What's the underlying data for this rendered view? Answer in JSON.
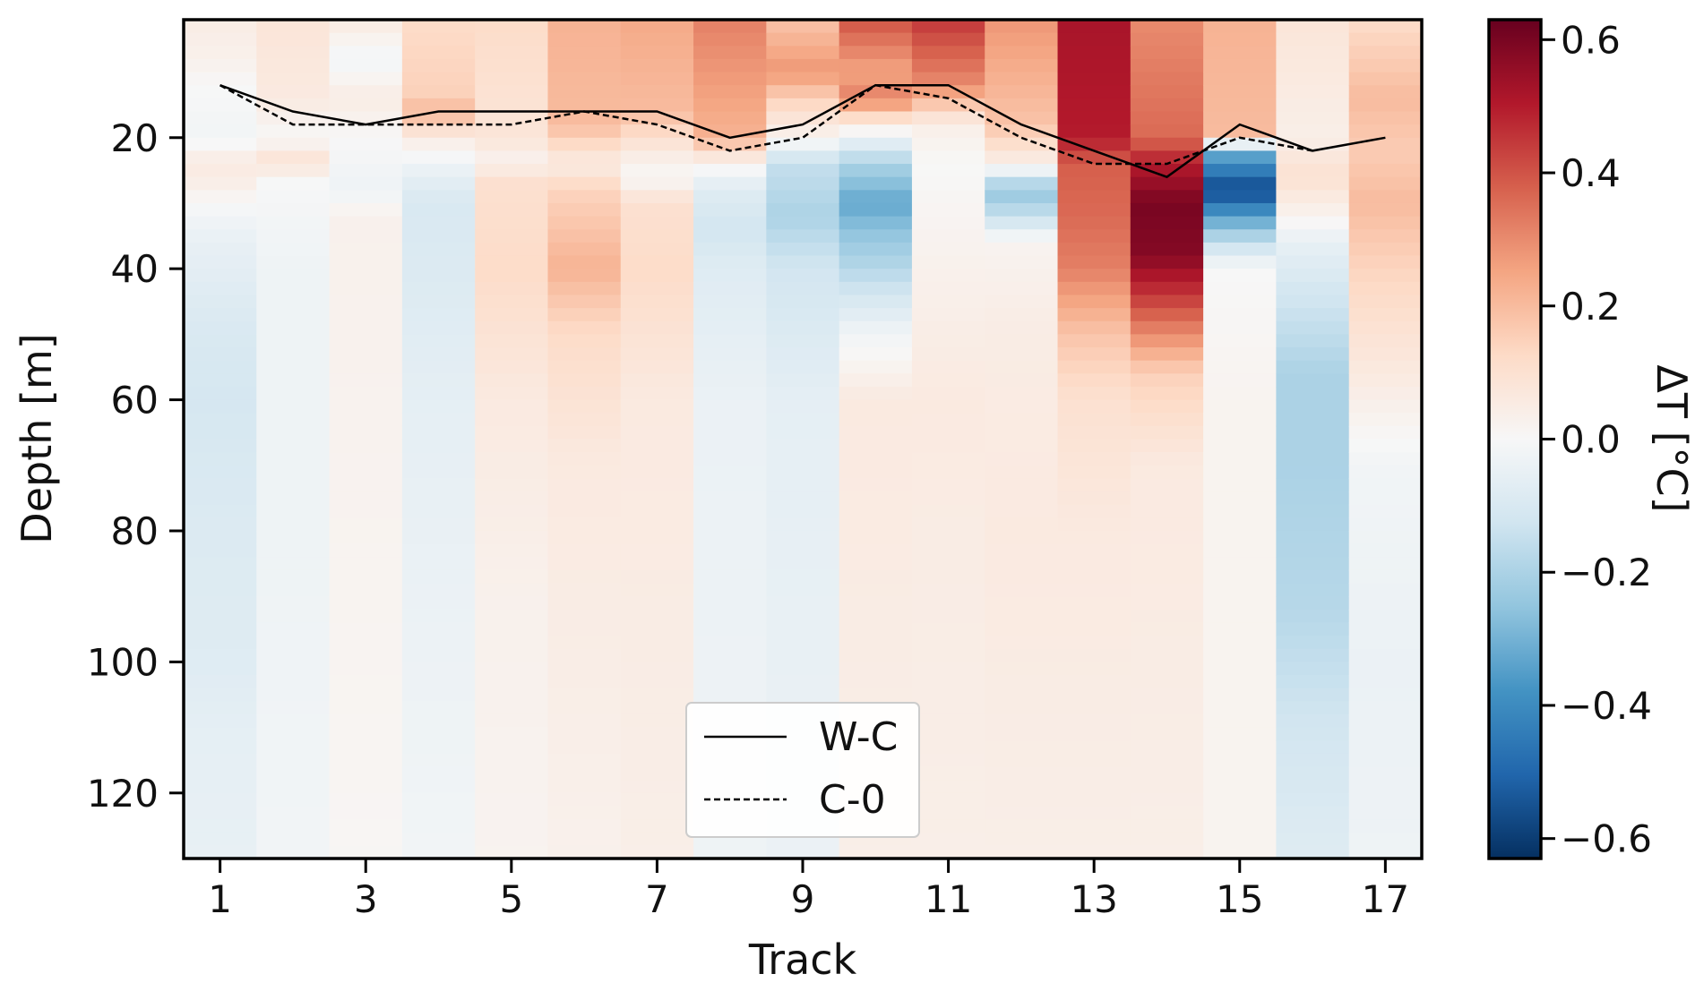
{
  "chart_data": {
    "type": "heatmap",
    "xlabel": "Track",
    "ylabel": "Depth [m]",
    "colorbar_label": "ΔT [°C]",
    "x": [
      1,
      2,
      3,
      4,
      5,
      6,
      7,
      8,
      9,
      10,
      11,
      12,
      13,
      14,
      15,
      16,
      17
    ],
    "xlim": [
      0.5,
      17.5
    ],
    "ylim": [
      130,
      2
    ],
    "y_inverted": true,
    "x_ticks": [
      1,
      3,
      5,
      7,
      9,
      11,
      13,
      15,
      17
    ],
    "x_tick_labels": [
      "1",
      "3",
      "5",
      "7",
      "9",
      "11",
      "13",
      "15",
      "17"
    ],
    "y_ticks": [
      20,
      40,
      60,
      80,
      100,
      120
    ],
    "y_tick_labels": [
      "20",
      "40",
      "60",
      "80",
      "100",
      "120"
    ],
    "colorbar_range": [
      -0.63,
      0.63
    ],
    "colorbar_ticks": [
      0.6,
      0.4,
      0.2,
      0.0,
      -0.2,
      -0.4,
      -0.6
    ],
    "colorbar_tick_labels": [
      "0.6",
      "0.4",
      "0.2",
      "0.0",
      "−0.2",
      "−0.4",
      "−0.6"
    ],
    "colormap": "RdBu_r",
    "depth_bin_m": 2,
    "profiles": [
      [
        [
          2,
          0.05
        ],
        [
          8,
          0.03
        ],
        [
          12,
          0.0
        ],
        [
          20,
          -0.02
        ],
        [
          24,
          0.06
        ],
        [
          27,
          0.04
        ],
        [
          30,
          0.0
        ],
        [
          36,
          -0.05
        ],
        [
          50,
          -0.1
        ],
        [
          60,
          -0.11
        ],
        [
          80,
          -0.09
        ],
        [
          100,
          -0.08
        ],
        [
          110,
          -0.06
        ],
        [
          130,
          -0.05
        ]
      ],
      [
        [
          2,
          0.08
        ],
        [
          14,
          0.06
        ],
        [
          20,
          0.0
        ],
        [
          24,
          0.1
        ],
        [
          26,
          0.0
        ],
        [
          40,
          -0.03
        ],
        [
          80,
          -0.03
        ],
        [
          130,
          -0.02
        ]
      ],
      [
        [
          2,
          0.06
        ],
        [
          8,
          -0.02
        ],
        [
          14,
          0.05
        ],
        [
          20,
          0.0
        ],
        [
          28,
          -0.03
        ],
        [
          32,
          0.03
        ],
        [
          80,
          0.02
        ],
        [
          130,
          0.01
        ]
      ],
      [
        [
          2,
          0.12
        ],
        [
          14,
          0.15
        ],
        [
          16,
          0.22
        ],
        [
          20,
          0.05
        ],
        [
          26,
          -0.06
        ],
        [
          30,
          -0.1
        ],
        [
          40,
          -0.09
        ],
        [
          60,
          -0.06
        ],
        [
          90,
          -0.04
        ],
        [
          110,
          -0.03
        ],
        [
          130,
          -0.02
        ]
      ],
      [
        [
          2,
          0.12
        ],
        [
          20,
          0.08
        ],
        [
          24,
          0.02
        ],
        [
          26,
          0.1
        ],
        [
          40,
          0.12
        ],
        [
          60,
          0.06
        ],
        [
          90,
          0.03
        ],
        [
          130,
          0.02
        ]
      ],
      [
        [
          2,
          0.22
        ],
        [
          18,
          0.2
        ],
        [
          24,
          0.05
        ],
        [
          28,
          0.14
        ],
        [
          40,
          0.22
        ],
        [
          50,
          0.12
        ],
        [
          70,
          0.06
        ],
        [
          130,
          0.03
        ]
      ],
      [
        [
          2,
          0.24
        ],
        [
          16,
          0.2
        ],
        [
          22,
          0.06
        ],
        [
          26,
          0.0
        ],
        [
          30,
          0.1
        ],
        [
          40,
          0.12
        ],
        [
          60,
          0.06
        ],
        [
          130,
          0.04
        ]
      ],
      [
        [
          2,
          0.32
        ],
        [
          20,
          0.22
        ],
        [
          24,
          0.02
        ],
        [
          28,
          -0.08
        ],
        [
          34,
          -0.12
        ],
        [
          40,
          -0.08
        ],
        [
          60,
          -0.04
        ],
        [
          130,
          -0.03
        ]
      ],
      [
        [
          2,
          0.18
        ],
        [
          10,
          0.28
        ],
        [
          14,
          0.15
        ],
        [
          20,
          0.02
        ],
        [
          24,
          -0.15
        ],
        [
          32,
          -0.2
        ],
        [
          40,
          -0.12
        ],
        [
          60,
          -0.06
        ],
        [
          130,
          -0.04
        ]
      ],
      [
        [
          2,
          0.4
        ],
        [
          10,
          0.25
        ],
        [
          14,
          0.32
        ],
        [
          18,
          0.05
        ],
        [
          24,
          -0.2
        ],
        [
          30,
          -0.33
        ],
        [
          34,
          -0.26
        ],
        [
          40,
          -0.18
        ],
        [
          50,
          -0.02
        ],
        [
          60,
          0.06
        ],
        [
          130,
          0.04
        ]
      ],
      [
        [
          2,
          0.45
        ],
        [
          12,
          0.3
        ],
        [
          18,
          0.04
        ],
        [
          24,
          0.0
        ],
        [
          40,
          0.03
        ],
        [
          60,
          0.06
        ],
        [
          80,
          0.05
        ],
        [
          130,
          0.04
        ]
      ],
      [
        [
          2,
          0.28
        ],
        [
          18,
          0.18
        ],
        [
          24,
          0.04
        ],
        [
          28,
          -0.25
        ],
        [
          32,
          -0.15
        ],
        [
          36,
          0.02
        ],
        [
          50,
          0.05
        ],
        [
          80,
          0.06
        ],
        [
          130,
          0.04
        ]
      ],
      [
        [
          2,
          0.52
        ],
        [
          20,
          0.5
        ],
        [
          24,
          0.38
        ],
        [
          32,
          0.36
        ],
        [
          40,
          0.32
        ],
        [
          50,
          0.18
        ],
        [
          60,
          0.1
        ],
        [
          80,
          0.06
        ],
        [
          130,
          0.04
        ]
      ],
      [
        [
          2,
          0.3
        ],
        [
          20,
          0.36
        ],
        [
          24,
          0.5
        ],
        [
          30,
          0.6
        ],
        [
          38,
          0.58
        ],
        [
          44,
          0.45
        ],
        [
          50,
          0.3
        ],
        [
          56,
          0.15
        ],
        [
          70,
          0.06
        ],
        [
          130,
          0.04
        ]
      ],
      [
        [
          2,
          0.22
        ],
        [
          20,
          0.2
        ],
        [
          22,
          -0.3
        ],
        [
          28,
          -0.58
        ],
        [
          32,
          -0.35
        ],
        [
          36,
          -0.15
        ],
        [
          40,
          0.0
        ],
        [
          60,
          0.02
        ],
        [
          130,
          0.02
        ]
      ],
      [
        [
          2,
          0.08
        ],
        [
          20,
          0.04
        ],
        [
          26,
          0.1
        ],
        [
          32,
          0.02
        ],
        [
          36,
          -0.05
        ],
        [
          44,
          -0.12
        ],
        [
          56,
          -0.2
        ],
        [
          70,
          -0.2
        ],
        [
          92,
          -0.18
        ],
        [
          110,
          -0.12
        ],
        [
          130,
          -0.08
        ]
      ],
      [
        [
          2,
          0.12
        ],
        [
          14,
          0.2
        ],
        [
          22,
          0.16
        ],
        [
          30,
          0.2
        ],
        [
          40,
          0.14
        ],
        [
          56,
          0.06
        ],
        [
          70,
          -0.02
        ],
        [
          100,
          -0.04
        ],
        [
          130,
          -0.03
        ]
      ]
    ],
    "series": [
      {
        "name": "W-C",
        "style": "solid",
        "x": [
          1,
          2,
          3,
          4,
          5,
          6,
          7,
          8,
          9,
          10,
          11,
          12,
          13,
          14,
          15,
          16,
          17
        ],
        "y": [
          12,
          16,
          18,
          16,
          16,
          16,
          16,
          20,
          18,
          12,
          12,
          18,
          22,
          26,
          18,
          22,
          20
        ]
      },
      {
        "name": "C-0",
        "style": "dashed",
        "x": [
          1,
          2,
          3,
          4,
          5,
          6,
          7,
          8,
          9,
          10,
          11,
          12,
          13,
          14,
          15,
          16
        ],
        "y": [
          12,
          18,
          18,
          18,
          18,
          16,
          18,
          22,
          20,
          12,
          14,
          20,
          24,
          24,
          20,
          22
        ]
      }
    ],
    "legend": {
      "entries": [
        "W-C",
        "C-0"
      ],
      "loc": "lower center"
    },
    "grid": false
  }
}
